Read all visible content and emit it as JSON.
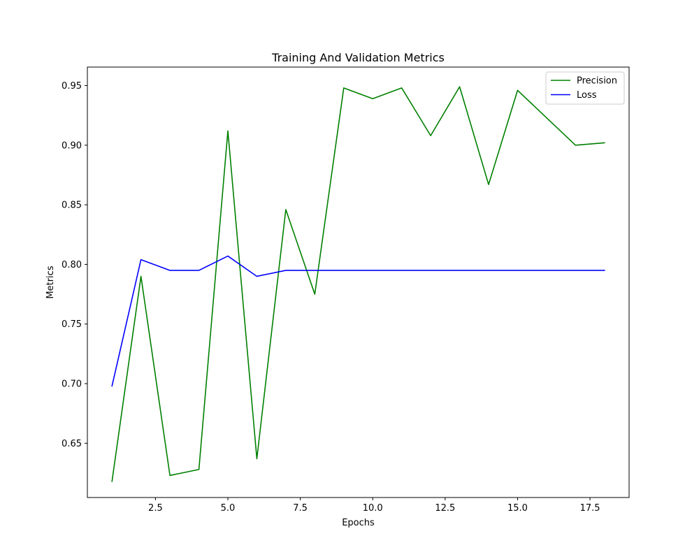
{
  "chart_data": {
    "type": "line",
    "title": "Training And Validation Metrics",
    "xlabel": "Epochs",
    "ylabel": "Metrics",
    "xlim": [
      0.15,
      18.85
    ],
    "ylim": [
      0.6045,
      0.9655
    ],
    "xticks": [
      2.5,
      5.0,
      7.5,
      10.0,
      12.5,
      15.0,
      17.5
    ],
    "xtick_labels": [
      "2.5",
      "5.0",
      "7.5",
      "10.0",
      "12.5",
      "15.0",
      "17.5"
    ],
    "yticks": [
      0.65,
      0.7,
      0.75,
      0.8,
      0.85,
      0.9,
      0.95
    ],
    "ytick_labels": [
      "0.65",
      "0.70",
      "0.75",
      "0.80",
      "0.85",
      "0.90",
      "0.95"
    ],
    "grid": false,
    "legend_position": "top-right",
    "x": [
      1,
      2,
      3,
      4,
      5,
      6,
      7,
      8,
      9,
      10,
      11,
      12,
      13,
      14,
      15,
      16,
      17,
      18
    ],
    "series": [
      {
        "name": "Precision",
        "color": "#008000",
        "values": [
          0.618,
          0.79,
          0.623,
          0.628,
          0.912,
          0.637,
          0.846,
          0.775,
          0.948,
          0.939,
          0.948,
          0.908,
          0.949,
          0.867,
          0.946,
          0.923,
          0.9,
          0.902
        ]
      },
      {
        "name": "Loss",
        "color": "#0000ff",
        "values": [
          0.698,
          0.804,
          0.795,
          0.795,
          0.807,
          0.79,
          0.795,
          0.795,
          0.795,
          0.795,
          0.795,
          0.795,
          0.795,
          0.795,
          0.795,
          0.795,
          0.795,
          0.795
        ]
      }
    ]
  }
}
